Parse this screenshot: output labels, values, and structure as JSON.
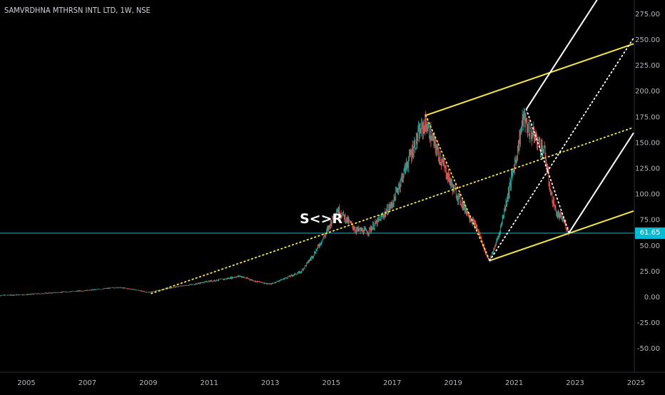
{
  "title": "SAMVRDHNA MTHRSN INTL LTD, 1W, NSE",
  "annotation": "S<>R",
  "colors": {
    "background": "#000000",
    "up": "#26a69a",
    "down": "#ef5350",
    "fork_yellow": "#f7e64a",
    "fork_white": "#ffffff",
    "hline": "#1fb6c9"
  },
  "last_price_label": "61.65",
  "chart_data": {
    "type": "candlestick",
    "title": "SAMVRDHNA MTHRSN INTL LTD, 1W, NSE",
    "x_ticks": [
      "2005",
      "2007",
      "2009",
      "2011",
      "2013",
      "2015",
      "2017",
      "2019",
      "2021",
      "2023",
      "2025"
    ],
    "y_ticks": [
      "275.00",
      "250.00",
      "225.00",
      "200.00",
      "175.00",
      "150.00",
      "125.00",
      "100.00",
      "75.00",
      "50.00",
      "25.00",
      "0.00",
      "-25.00",
      "-50.00"
    ],
    "ylim": [
      -72,
      290
    ],
    "xlim": [
      2004.0,
      2025.0
    ],
    "last_price": 61.65,
    "price_path": [
      [
        2004.0,
        1
      ],
      [
        2005.0,
        2
      ],
      [
        2006.0,
        4
      ],
      [
        2007.0,
        6
      ],
      [
        2008.0,
        9
      ],
      [
        2008.5,
        7
      ],
      [
        2009.0,
        4
      ],
      [
        2009.5,
        7
      ],
      [
        2010.0,
        10
      ],
      [
        2010.5,
        12
      ],
      [
        2011.0,
        15
      ],
      [
        2011.5,
        17
      ],
      [
        2012.0,
        20
      ],
      [
        2012.5,
        15
      ],
      [
        2013.0,
        12
      ],
      [
        2013.5,
        18
      ],
      [
        2014.0,
        24
      ],
      [
        2014.4,
        40
      ],
      [
        2014.8,
        60
      ],
      [
        2015.2,
        85
      ],
      [
        2015.5,
        75
      ],
      [
        2015.8,
        65
      ],
      [
        2016.2,
        63
      ],
      [
        2016.6,
        75
      ],
      [
        2017.0,
        90
      ],
      [
        2017.5,
        130
      ],
      [
        2017.9,
        160
      ],
      [
        2018.1,
        168
      ],
      [
        2018.5,
        140
      ],
      [
        2019.0,
        105
      ],
      [
        2019.4,
        85
      ],
      [
        2019.8,
        65
      ],
      [
        2020.1,
        40
      ],
      [
        2020.2,
        35
      ],
      [
        2020.5,
        60
      ],
      [
        2020.8,
        100
      ],
      [
        2021.1,
        140
      ],
      [
        2021.3,
        175
      ],
      [
        2021.5,
        160
      ],
      [
        2021.7,
        155
      ],
      [
        2022.0,
        140
      ],
      [
        2022.2,
        100
      ],
      [
        2022.4,
        80
      ],
      [
        2022.6,
        75
      ],
      [
        2022.8,
        62
      ]
    ],
    "pitchfork_1": {
      "pivots": [
        [
          2009.1,
          3
        ],
        [
          2018.1,
          176
        ],
        [
          2020.2,
          35
        ]
      ],
      "color": "yellow"
    },
    "pitchfork_2": {
      "pivots": [
        [
          2020.2,
          35
        ],
        [
          2021.4,
          182
        ],
        [
          2022.8,
          62
        ]
      ],
      "color": "white"
    },
    "horizontal_line": 61.65
  }
}
